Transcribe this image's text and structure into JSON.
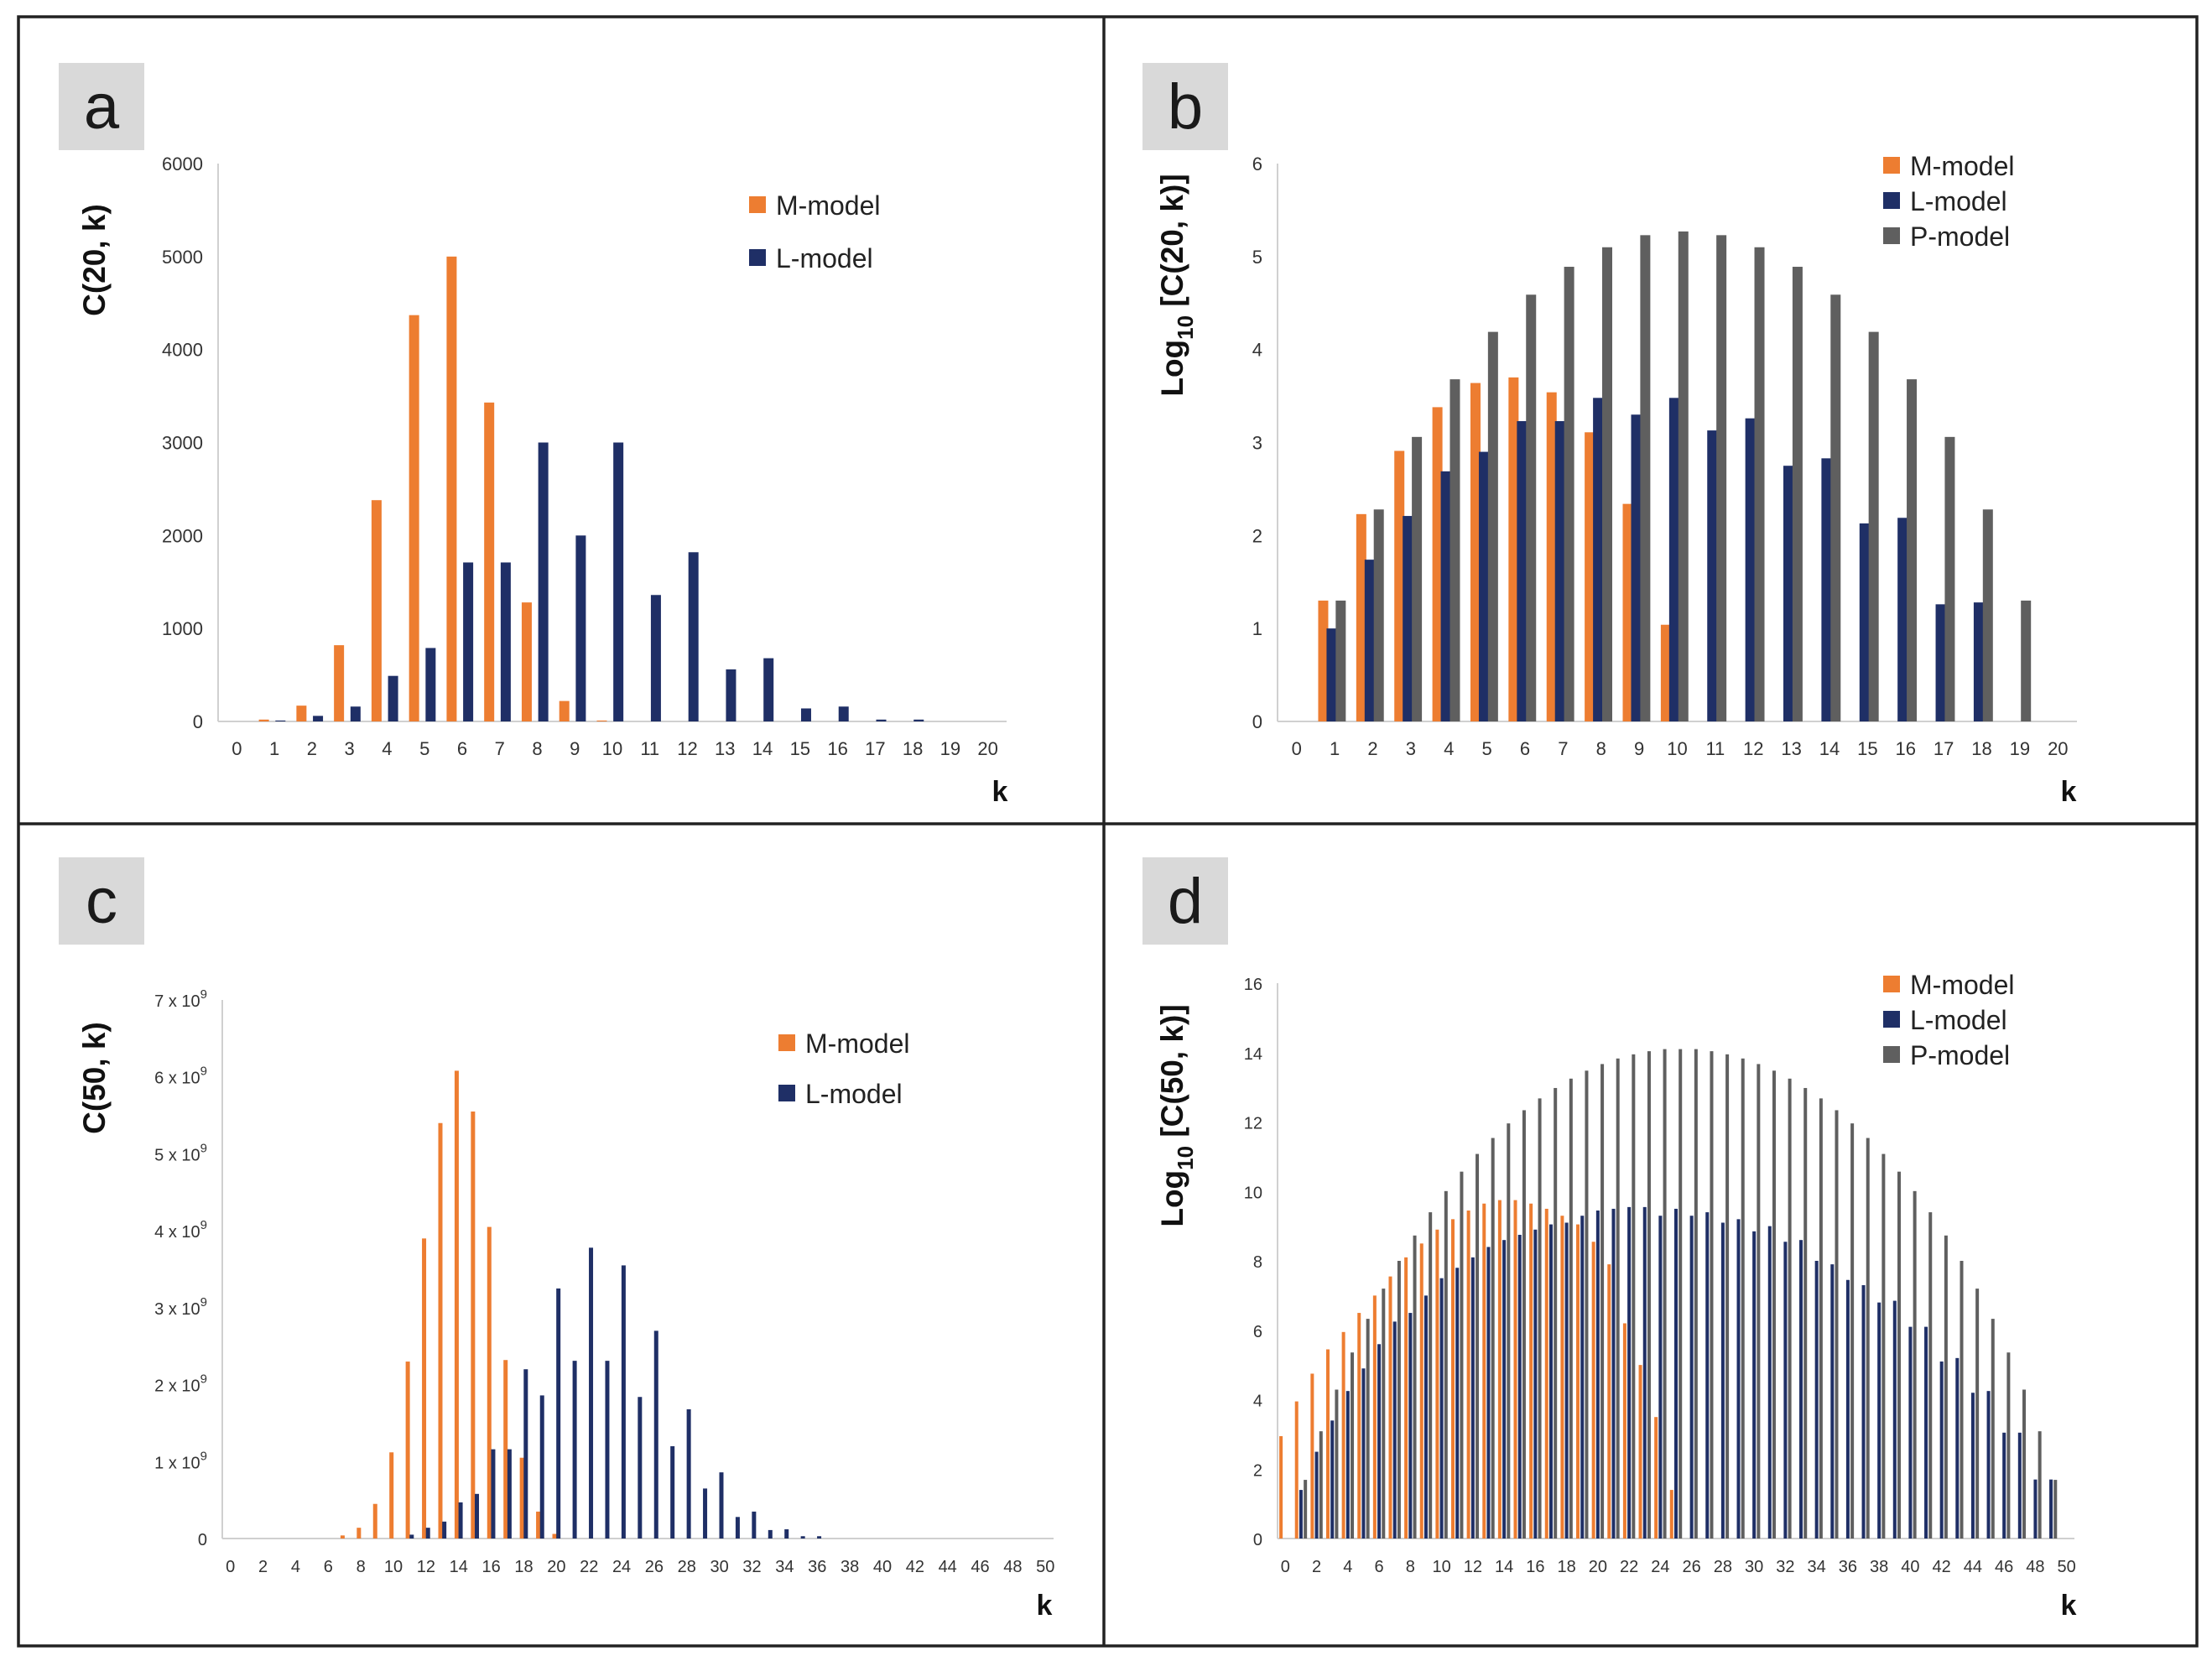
{
  "colors": {
    "m_model": "#ed7d31",
    "l_model": "#1f2f66",
    "p_model": "#5f5f5f"
  },
  "chart_data": [
    {
      "panel": "a",
      "type": "bar",
      "ylabel": "C(20, k)",
      "xlabel": "k",
      "ylim": [
        0,
        6000
      ],
      "y_ticks": [
        0,
        1000,
        2000,
        3000,
        4000,
        5000,
        6000
      ],
      "y_tick_labels": [
        "0",
        "1000",
        "2000",
        "3000",
        "4000",
        "5000",
        "6000"
      ],
      "x": [
        0,
        1,
        2,
        3,
        4,
        5,
        6,
        7,
        8,
        9,
        10,
        11,
        12,
        13,
        14,
        15,
        16,
        17,
        18,
        19,
        20
      ],
      "x_tick_labels": [
        "0",
        "1",
        "2",
        "3",
        "4",
        "5",
        "6",
        "7",
        "8",
        "9",
        "10",
        "11",
        "12",
        "13",
        "14",
        "15",
        "16",
        "17",
        "18",
        "19",
        "20"
      ],
      "series": [
        {
          "name": "M-model",
          "color_key": "m_model",
          "values": [
            0,
            20,
            170,
            820,
            2380,
            4370,
            5000,
            3430,
            1280,
            220,
            10,
            0,
            0,
            0,
            0,
            0,
            0,
            0,
            0,
            0,
            0
          ]
        },
        {
          "name": "L-model",
          "color_key": "l_model",
          "values": [
            0,
            10,
            60,
            160,
            490,
            790,
            1710,
            1710,
            3000,
            2000,
            3000,
            1360,
            1820,
            560,
            680,
            140,
            160,
            20,
            20,
            0,
            0
          ]
        }
      ]
    },
    {
      "panel": "b",
      "type": "bar",
      "ylabel_main": "Log",
      "ylabel_sub": "10",
      "ylabel_rest": " [C(20, k)]",
      "xlabel": "k",
      "ylim": [
        0,
        6
      ],
      "y_ticks": [
        0,
        1,
        2,
        3,
        4,
        5,
        6
      ],
      "y_tick_labels": [
        "0",
        "1",
        "2",
        "3",
        "4",
        "5",
        "6"
      ],
      "x": [
        0,
        1,
        2,
        3,
        4,
        5,
        6,
        7,
        8,
        9,
        10,
        11,
        12,
        13,
        14,
        15,
        16,
        17,
        18,
        19,
        20
      ],
      "x_tick_labels": [
        "0",
        "1",
        "2",
        "3",
        "4",
        "5",
        "6",
        "7",
        "8",
        "9",
        "10",
        "11",
        "12",
        "13",
        "14",
        "15",
        "16",
        "17",
        "18",
        "19",
        "20"
      ],
      "series": [
        {
          "name": "M-model",
          "color_key": "m_model",
          "values": [
            null,
            1.3,
            2.23,
            2.91,
            3.38,
            3.64,
            3.7,
            3.54,
            3.11,
            2.34,
            1.04,
            null,
            null,
            null,
            null,
            null,
            null,
            null,
            null,
            null,
            null
          ]
        },
        {
          "name": "L-model",
          "color_key": "l_model",
          "values": [
            null,
            1.0,
            1.74,
            2.21,
            2.69,
            2.9,
            3.23,
            3.23,
            3.48,
            3.3,
            3.48,
            3.13,
            3.26,
            2.75,
            2.83,
            2.13,
            2.19,
            1.26,
            1.28,
            null,
            null
          ]
        },
        {
          "name": "P-model",
          "color_key": "p_model",
          "values": [
            null,
            1.3,
            2.28,
            3.06,
            3.68,
            4.19,
            4.59,
            4.89,
            5.1,
            5.23,
            5.27,
            5.23,
            5.1,
            4.89,
            4.59,
            4.19,
            3.68,
            3.06,
            2.28,
            1.3,
            null
          ]
        }
      ]
    },
    {
      "panel": "c",
      "type": "bar",
      "ylabel": "C(50, k)",
      "xlabel": "k",
      "ylim": [
        0,
        7
      ],
      "y_unit": "× 10^9",
      "y_ticks": [
        0,
        1,
        2,
        3,
        4,
        5,
        6,
        7
      ],
      "y_tick_labels": [
        "0",
        "1 x 10",
        "2 x 10",
        "3 x 10",
        "4 x 10",
        "5 x 10",
        "6 x 10",
        "7 x 10"
      ],
      "y_tick_exponent": "9",
      "x_tick_labels": [
        "0",
        "2",
        "4",
        "6",
        "8",
        "10",
        "12",
        "14",
        "16",
        "18",
        "20",
        "22",
        "24",
        "26",
        "28",
        "30",
        "32",
        "34",
        "36",
        "38",
        "40",
        "42",
        "44",
        "46",
        "48",
        "50"
      ],
      "series": [
        {
          "name": "M-model",
          "color_key": "m_model",
          "values": [
            0,
            0,
            0,
            0,
            0,
            0,
            0,
            0.04,
            0.14,
            0.45,
            1.12,
            2.3,
            3.9,
            5.4,
            6.08,
            5.55,
            4.05,
            2.32,
            1.05,
            0.35,
            0.06,
            0,
            0,
            0,
            0,
            0,
            0,
            0,
            0,
            0,
            0,
            0,
            0,
            0,
            0,
            0,
            0,
            0,
            0,
            0,
            0,
            0,
            0,
            0,
            0,
            0,
            0,
            0,
            0,
            0,
            0
          ]
        },
        {
          "name": "L-model",
          "color_key": "l_model",
          "values": [
            0,
            0,
            0,
            0,
            0,
            0,
            0,
            0,
            0,
            0,
            0,
            0.05,
            0.14,
            0.22,
            0.47,
            0.58,
            1.16,
            1.16,
            2.2,
            1.86,
            3.25,
            2.31,
            3.78,
            2.31,
            3.55,
            1.84,
            2.7,
            1.2,
            1.68,
            0.65,
            0.86,
            0.28,
            0.35,
            0.11,
            0.12,
            0.03,
            0.03,
            0,
            0,
            0,
            0,
            0,
            0,
            0,
            0,
            0,
            0,
            0,
            0,
            0,
            0
          ]
        }
      ]
    },
    {
      "panel": "d",
      "type": "bar",
      "ylabel_main": "Log",
      "ylabel_sub": "10",
      "ylabel_rest": " [C(50, k)]",
      "xlabel": "k",
      "ylim": [
        0,
        16
      ],
      "y_ticks": [
        0,
        2,
        4,
        6,
        8,
        10,
        12,
        14,
        16
      ],
      "y_tick_labels": [
        "0",
        "2",
        "4",
        "6",
        "8",
        "10",
        "12",
        "14",
        "16"
      ],
      "x_tick_labels": [
        "0",
        "2",
        "4",
        "6",
        "8",
        "10",
        "12",
        "14",
        "16",
        "18",
        "20",
        "22",
        "24",
        "26",
        "28",
        "30",
        "32",
        "34",
        "36",
        "38",
        "40",
        "42",
        "44",
        "46",
        "48",
        "50"
      ],
      "series": [
        {
          "name": "M-model",
          "color_key": "m_model",
          "values": [
            2.95,
            3.95,
            4.75,
            5.45,
            5.95,
            6.5,
            7.0,
            7.55,
            8.1,
            8.5,
            8.9,
            9.2,
            9.45,
            9.65,
            9.75,
            9.75,
            9.65,
            9.5,
            9.3,
            9.05,
            8.55,
            7.9,
            6.2,
            5.0,
            3.5,
            1.4,
            null,
            null,
            null,
            null,
            null,
            null,
            null,
            null,
            null,
            null,
            null,
            null,
            null,
            null,
            null,
            null,
            null,
            null,
            null,
            null,
            null,
            null,
            null,
            null,
            null
          ]
        },
        {
          "name": "L-model",
          "color_key": "l_model",
          "values": [
            null,
            1.4,
            2.5,
            3.4,
            4.25,
            4.9,
            5.6,
            6.25,
            6.5,
            7.0,
            7.5,
            7.8,
            8.1,
            8.4,
            8.6,
            8.75,
            8.9,
            9.05,
            9.1,
            9.3,
            9.45,
            9.5,
            9.55,
            9.55,
            9.3,
            9.5,
            9.3,
            9.4,
            9.1,
            9.2,
            8.85,
            9.0,
            8.55,
            8.6,
            8.0,
            7.9,
            7.45,
            7.3,
            6.8,
            6.85,
            6.1,
            6.1,
            5.1,
            5.2,
            4.2,
            4.25,
            3.05,
            3.05,
            1.7,
            1.7,
            null
          ]
        },
        {
          "name": "P-model",
          "color_key": "p_model",
          "values": [
            null,
            1.69,
            3.09,
            4.29,
            5.36,
            6.33,
            7.2,
            8.0,
            8.73,
            9.4,
            10.01,
            10.57,
            11.08,
            11.54,
            11.96,
            12.34,
            12.68,
            12.98,
            13.25,
            13.48,
            13.67,
            13.83,
            13.95,
            14.04,
            14.1,
            14.1,
            14.1,
            14.04,
            13.95,
            13.83,
            13.67,
            13.48,
            13.25,
            12.98,
            12.68,
            12.34,
            11.96,
            11.54,
            11.08,
            10.57,
            10.01,
            9.4,
            8.73,
            8.0,
            7.2,
            6.33,
            5.36,
            4.29,
            3.09,
            1.69,
            null
          ]
        }
      ]
    }
  ]
}
